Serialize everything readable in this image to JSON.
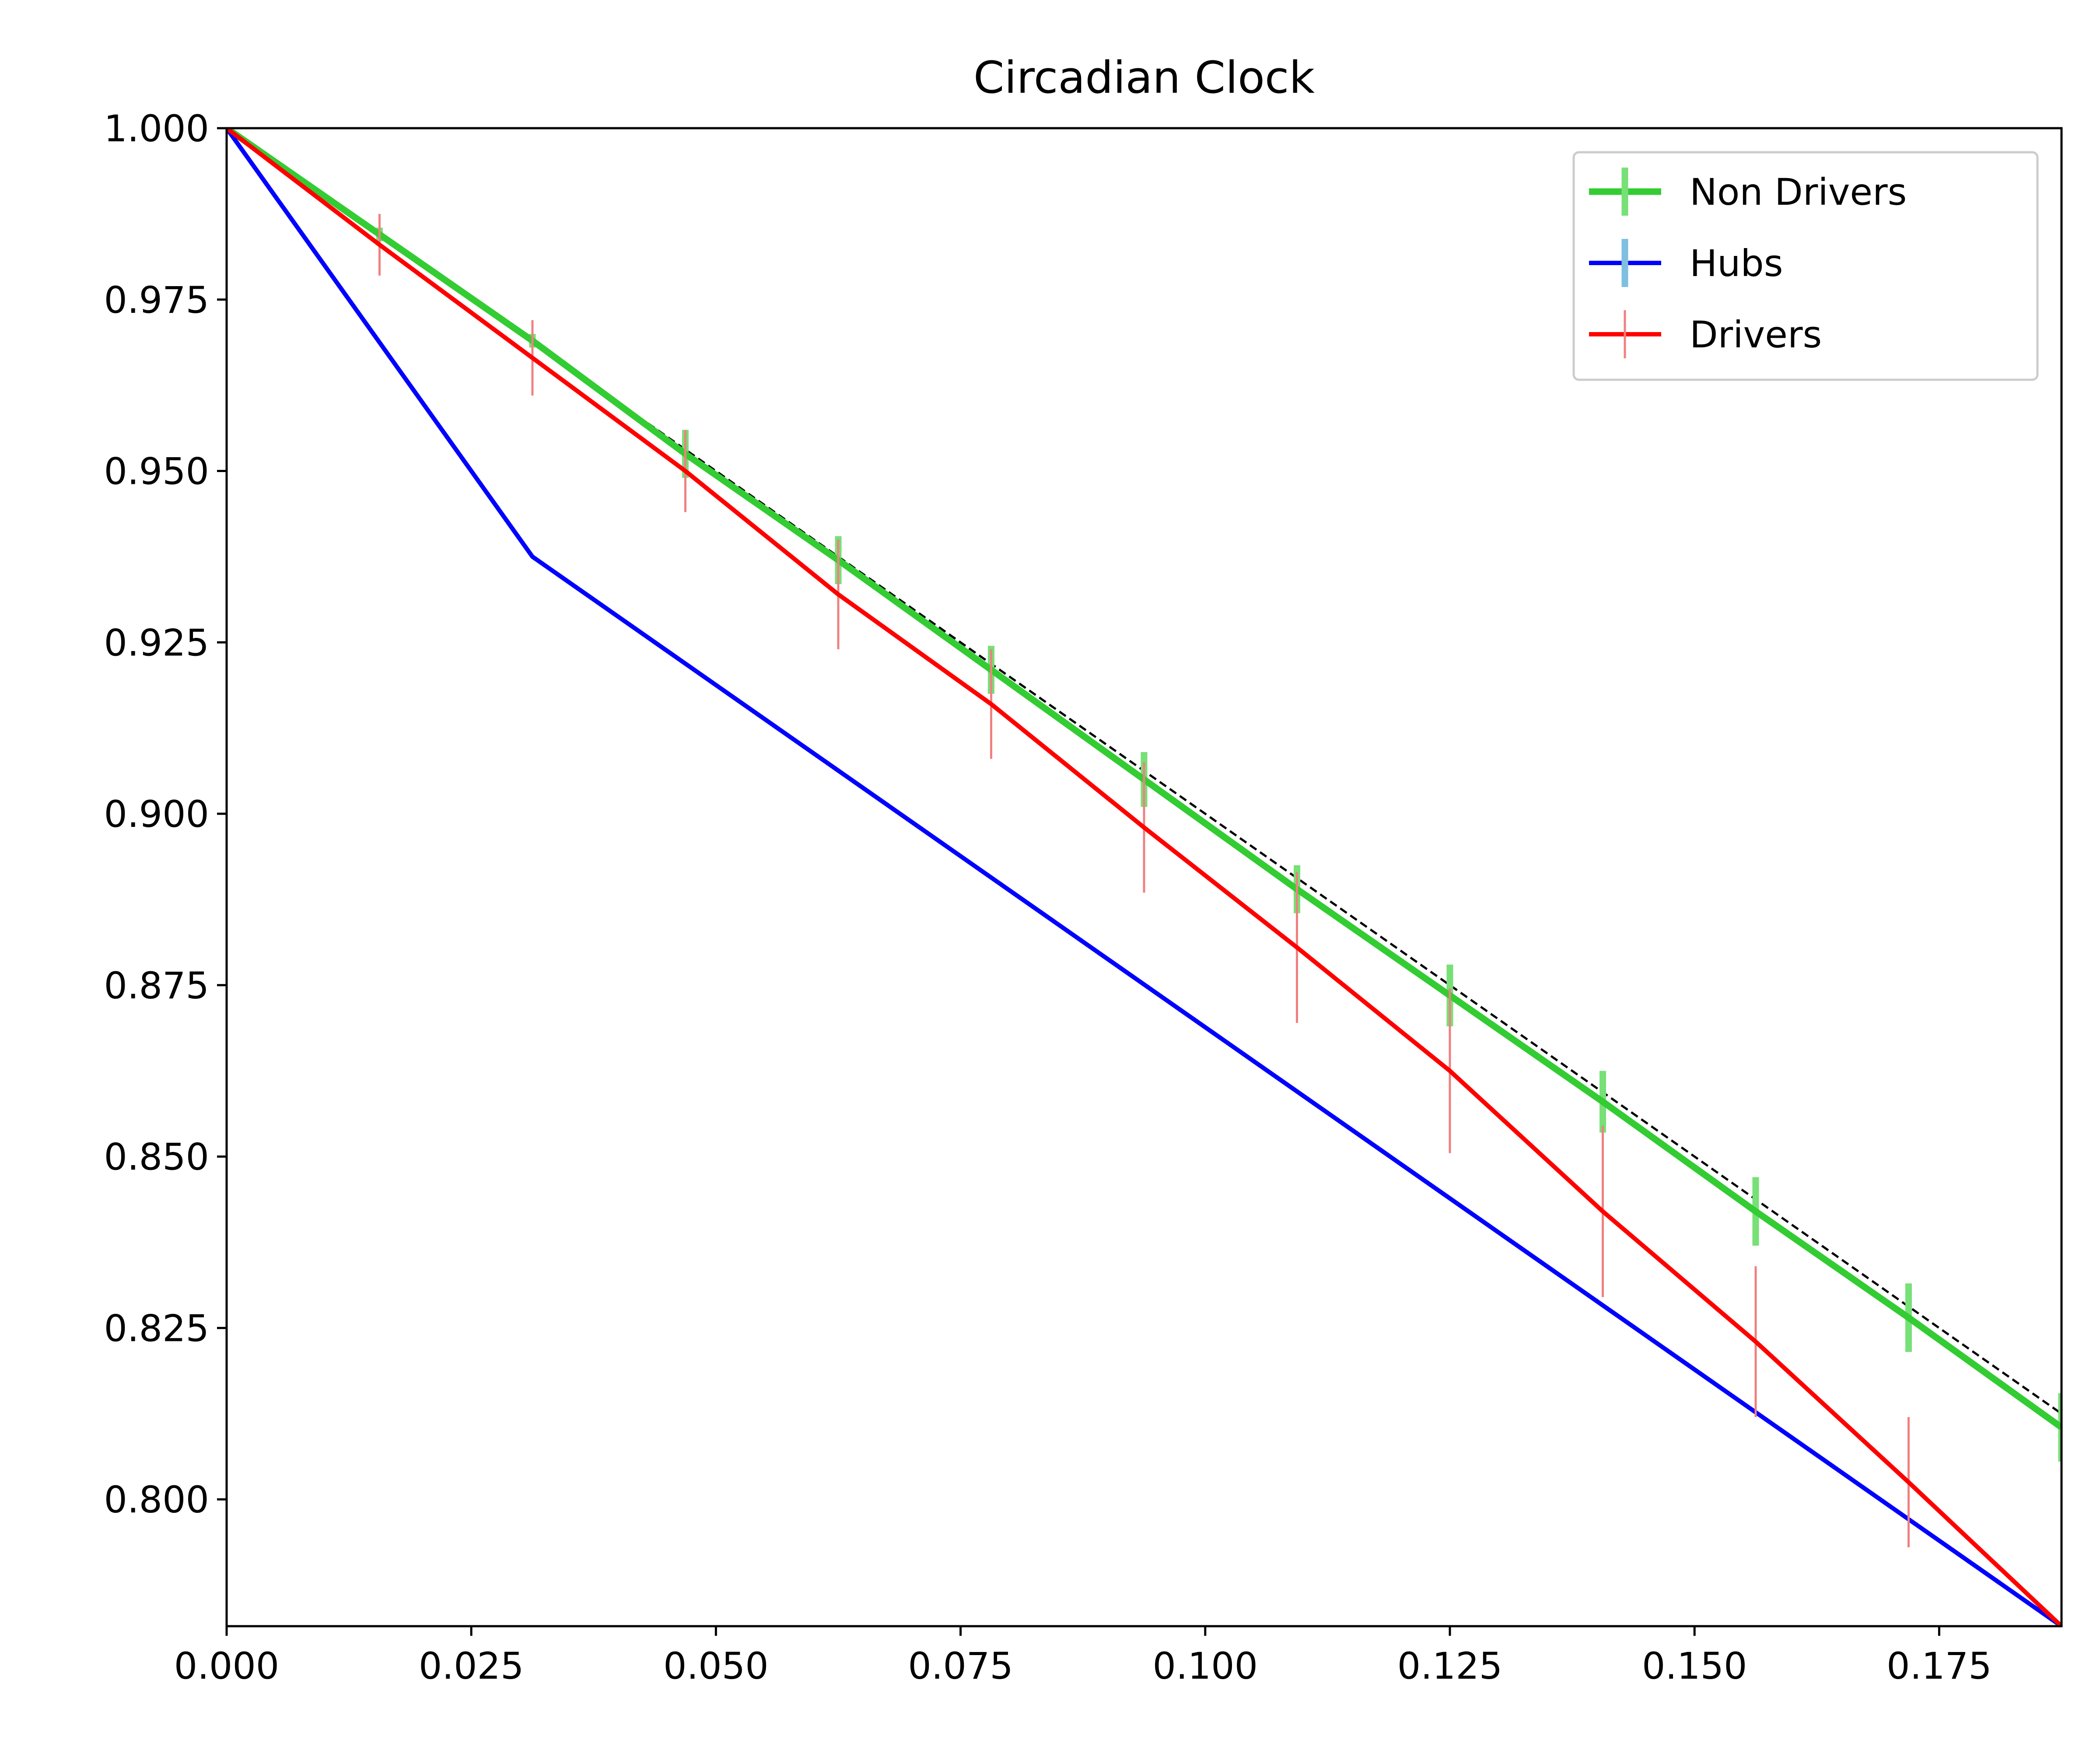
{
  "chart_data": {
    "type": "line",
    "title": "Circadian Clock",
    "xlabel": "",
    "ylabel": "",
    "xlim": [
      0.0,
      0.1875
    ],
    "ylim": [
      0.7815,
      1.0
    ],
    "x_ticks": [
      "0.000",
      "0.025",
      "0.050",
      "0.075",
      "0.100",
      "0.125",
      "0.150",
      "0.175"
    ],
    "y_ticks": [
      "0.800",
      "0.825",
      "0.850",
      "0.875",
      "0.900",
      "0.925",
      "0.950",
      "0.975",
      "1.000"
    ],
    "legend_position": "top-right",
    "series": [
      {
        "name": "Non Drivers",
        "color": "#33cc33",
        "error_color": "#77e077",
        "x": [
          0,
          0.015625,
          0.03125,
          0.046875,
          0.0625,
          0.078125,
          0.09375,
          0.109375,
          0.125,
          0.140625,
          0.15625,
          0.171875,
          0.1875
        ],
        "y": [
          1.0,
          0.9845,
          0.969,
          0.9525,
          0.937,
          0.921,
          0.905,
          0.889,
          0.8735,
          0.858,
          0.842,
          0.8265,
          0.8105
        ],
        "err": [
          0,
          0.001,
          0.001,
          0.0035,
          0.0035,
          0.0035,
          0.004,
          0.0035,
          0.0045,
          0.0045,
          0.005,
          0.005,
          0.005
        ]
      },
      {
        "name": "Hubs",
        "color": "#0000ff",
        "error_color": "#7fbfe0",
        "x": [
          0,
          0.03125,
          0.1875
        ],
        "y": [
          1.0,
          0.9375,
          0.7815
        ],
        "err": [
          0,
          0,
          0
        ]
      },
      {
        "name": "Drivers",
        "color": "#ff0000",
        "error_color": "#f08080",
        "x": [
          0,
          0.015625,
          0.03125,
          0.046875,
          0.0625,
          0.078125,
          0.09375,
          0.109375,
          0.125,
          0.140625,
          0.15625,
          0.171875,
          0.1875
        ],
        "y": [
          1.0,
          0.983,
          0.9665,
          0.95,
          0.932,
          0.916,
          0.898,
          0.8805,
          0.8625,
          0.842,
          0.823,
          0.8025,
          0.7815
        ],
        "err": [
          0,
          0.0045,
          0.0055,
          0.006,
          0.008,
          0.008,
          0.0095,
          0.011,
          0.012,
          0.0125,
          0.011,
          0.0095,
          0
        ]
      }
    ],
    "reference_line": {
      "name": "reference",
      "style": "dashed",
      "color": "#000000",
      "x": [
        0,
        0.1875
      ],
      "y": [
        1.0,
        0.8125
      ]
    }
  }
}
